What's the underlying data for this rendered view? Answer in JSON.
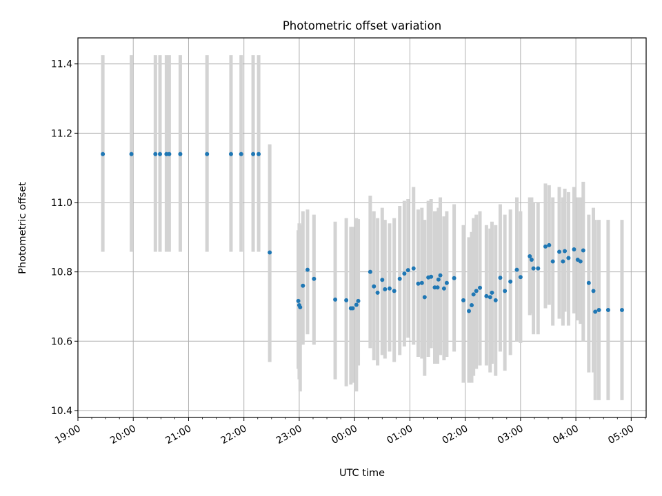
{
  "chart_data": {
    "type": "scatter",
    "title": "Photometric offset variation",
    "xlabel": "UTC time",
    "ylabel": "Photometric offset",
    "ylim": [
      10.38,
      11.475
    ],
    "xlim_hours": [
      19.0,
      29.27
    ],
    "x_ticks": [
      "19:00",
      "20:00",
      "21:00",
      "22:00",
      "23:00",
      "00:00",
      "01:00",
      "02:00",
      "03:00",
      "04:00",
      "05:00"
    ],
    "y_ticks": [
      "10.4",
      "10.6",
      "10.8",
      "11.0",
      "11.2",
      "11.4"
    ],
    "grid": true,
    "marker_color": "#1f77b4",
    "errorbar_color": "#d3d3d3",
    "series": [
      {
        "x": [
          "19:27",
          "19:58",
          "20:24",
          "20:29",
          "20:36",
          "20:39",
          "20:51",
          "21:20",
          "21:46",
          "21:57",
          "22:10",
          "22:16",
          "22:28",
          "22:59",
          "23:00",
          "23:01",
          "23:04",
          "23:09",
          "23:16",
          "23:39",
          "23:51",
          "23:56",
          "23:58",
          "24:02",
          "24:04",
          "24:17",
          "24:21",
          "24:25",
          "24:30",
          "24:33",
          "24:38",
          "24:43",
          "24:49",
          "24:54",
          "24:58",
          "25:04",
          "25:09",
          "25:13",
          "25:16",
          "25:20",
          "25:23",
          "25:27",
          "25:30",
          "25:31",
          "25:33",
          "25:37",
          "25:40",
          "25:48",
          "25:58",
          "26:04",
          "26:07",
          "26:09",
          "26:12",
          "26:16",
          "26:23",
          "26:27",
          "26:29",
          "26:33",
          "26:38",
          "26:43",
          "26:49",
          "26:56",
          "27:00",
          "27:10",
          "27:12",
          "27:14",
          "27:19",
          "27:27",
          "27:31",
          "27:35",
          "27:42",
          "27:46",
          "27:48",
          "27:52",
          "27:58",
          "28:02",
          "28:05",
          "28:08",
          "28:14",
          "28:19",
          "28:21",
          "28:25",
          "28:35",
          "28:50"
        ],
        "y": [
          11.14,
          11.14,
          11.14,
          11.14,
          11.14,
          11.14,
          11.14,
          11.14,
          11.14,
          11.14,
          11.14,
          11.14,
          10.856,
          10.716,
          10.704,
          10.698,
          10.76,
          10.806,
          10.78,
          10.72,
          10.718,
          10.695,
          10.695,
          10.705,
          10.716,
          10.8,
          10.758,
          10.74,
          10.777,
          10.75,
          10.752,
          10.745,
          10.78,
          10.795,
          10.805,
          10.81,
          10.766,
          10.768,
          10.727,
          10.784,
          10.786,
          10.755,
          10.755,
          10.778,
          10.79,
          10.752,
          10.768,
          10.782,
          10.718,
          10.687,
          10.704,
          10.735,
          10.745,
          10.754,
          10.73,
          10.727,
          10.74,
          10.718,
          10.783,
          10.745,
          10.772,
          10.806,
          10.785,
          10.845,
          10.835,
          10.81,
          10.81,
          10.873,
          10.877,
          10.83,
          10.858,
          10.83,
          10.86,
          10.84,
          10.865,
          10.835,
          10.83,
          10.862,
          10.768,
          10.745,
          10.685,
          10.69,
          10.69,
          10.69
        ],
        "err_low": [
          10.858,
          10.858,
          10.858,
          10.858,
          10.858,
          10.858,
          10.858,
          10.858,
          10.858,
          10.858,
          10.858,
          10.858,
          10.54,
          10.52,
          10.49,
          10.455,
          10.59,
          10.62,
          10.59,
          10.49,
          10.47,
          10.475,
          10.48,
          10.455,
          10.53,
          10.58,
          10.545,
          10.53,
          10.56,
          10.55,
          10.57,
          10.54,
          10.56,
          10.585,
          10.61,
          10.59,
          10.555,
          10.55,
          10.5,
          10.555,
          10.58,
          10.535,
          10.535,
          10.57,
          10.56,
          10.545,
          10.555,
          10.57,
          10.48,
          10.48,
          10.48,
          10.5,
          10.52,
          10.53,
          10.53,
          10.51,
          10.535,
          10.5,
          10.57,
          10.515,
          10.56,
          10.6,
          10.595,
          10.675,
          10.68,
          10.62,
          10.62,
          10.695,
          10.705,
          10.645,
          10.665,
          10.645,
          10.685,
          10.645,
          10.68,
          10.66,
          10.65,
          10.6,
          10.51,
          10.51,
          10.43,
          10.43,
          10.43,
          10.43
        ],
        "err_high": [
          11.425,
          11.425,
          11.425,
          11.425,
          11.425,
          11.425,
          11.425,
          11.425,
          11.425,
          11.425,
          11.425,
          11.425,
          11.168,
          10.92,
          10.94,
          10.935,
          10.975,
          10.98,
          10.965,
          10.945,
          10.955,
          10.93,
          10.93,
          10.955,
          10.952,
          11.02,
          10.975,
          10.955,
          10.985,
          10.95,
          10.94,
          10.955,
          10.99,
          11.005,
          11.01,
          11.045,
          10.98,
          10.985,
          10.95,
          11.005,
          11.01,
          10.975,
          10.975,
          10.985,
          11.015,
          10.96,
          10.975,
          10.995,
          10.935,
          10.9,
          10.915,
          10.955,
          10.965,
          10.975,
          10.935,
          10.925,
          10.945,
          10.935,
          10.995,
          10.965,
          10.98,
          11.015,
          10.975,
          11.015,
          11.015,
          11.0,
          11.0,
          11.055,
          11.05,
          11.015,
          11.045,
          11.015,
          11.04,
          11.03,
          11.045,
          11.015,
          11.015,
          11.06,
          10.965,
          10.985,
          10.95,
          10.95,
          10.95,
          10.95
        ]
      }
    ]
  }
}
